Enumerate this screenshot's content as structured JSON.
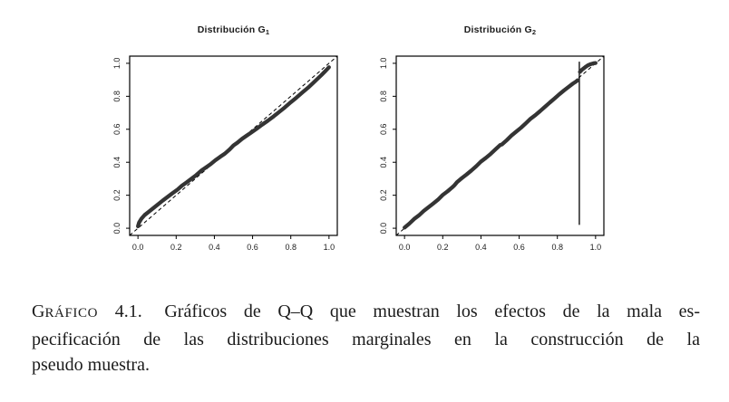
{
  "colors": {
    "background": "#ffffff",
    "curve": "#343434",
    "axis": "#000000",
    "reference": "#000000",
    "text": "#1b1b1b"
  },
  "caption": {
    "label_initial": "G",
    "label_rest": "RÁFICO",
    "number": "4.1.",
    "lines": [
      "Gráficos de Q–Q que muestran los efectos de la mala es-",
      "pecificación de las distribuciones marginales en la construcción de la",
      "pseudo muestra."
    ]
  },
  "chart_data": [
    {
      "type": "line",
      "title": "Distribución G",
      "title_subscript": "1",
      "xlabel": "",
      "ylabel": "",
      "xlim": [
        0,
        1
      ],
      "ylim": [
        0,
        1
      ],
      "grid": false,
      "xticks": [
        0,
        0.2,
        0.4,
        0.6,
        0.8,
        1.0
      ],
      "yticks": [
        0,
        0.2,
        0.4,
        0.6,
        0.8,
        1.0
      ],
      "xtick_labels": [
        "0.0",
        "0.2",
        "0.4",
        "0.6",
        "0.8",
        "1.0"
      ],
      "ytick_labels": [
        "0.0",
        "0.2",
        "0.4",
        "0.6",
        "0.8",
        "1.0"
      ],
      "reference_line": {
        "type": "diagonal",
        "style": "dashed",
        "from": [
          0,
          0
        ],
        "to": [
          1,
          1
        ]
      },
      "series": [
        {
          "name": "qq-curve",
          "style": "thick-points",
          "points": [
            [
              0.0,
              0.012
            ],
            [
              0.006,
              0.035
            ],
            [
              0.018,
              0.058
            ],
            [
              0.035,
              0.08
            ],
            [
              0.055,
              0.098
            ],
            [
              0.08,
              0.122
            ],
            [
              0.105,
              0.145
            ],
            [
              0.13,
              0.168
            ],
            [
              0.155,
              0.19
            ],
            [
              0.18,
              0.212
            ],
            [
              0.205,
              0.232
            ],
            [
              0.23,
              0.258
            ],
            [
              0.255,
              0.278
            ],
            [
              0.28,
              0.3
            ],
            [
              0.305,
              0.322
            ],
            [
              0.33,
              0.348
            ],
            [
              0.355,
              0.368
            ],
            [
              0.38,
              0.388
            ],
            [
              0.405,
              0.412
            ],
            [
              0.43,
              0.433
            ],
            [
              0.455,
              0.452
            ],
            [
              0.48,
              0.478
            ],
            [
              0.5,
              0.502
            ],
            [
              0.52,
              0.518
            ],
            [
              0.545,
              0.542
            ],
            [
              0.57,
              0.562
            ],
            [
              0.595,
              0.582
            ],
            [
              0.62,
              0.602
            ],
            [
              0.65,
              0.628
            ],
            [
              0.68,
              0.652
            ],
            [
              0.71,
              0.678
            ],
            [
              0.74,
              0.706
            ],
            [
              0.77,
              0.734
            ],
            [
              0.8,
              0.764
            ],
            [
              0.83,
              0.792
            ],
            [
              0.86,
              0.822
            ],
            [
              0.89,
              0.852
            ],
            [
              0.915,
              0.878
            ],
            [
              0.94,
              0.906
            ],
            [
              0.96,
              0.928
            ],
            [
              0.98,
              0.952
            ],
            [
              1.0,
              0.976
            ]
          ]
        }
      ]
    },
    {
      "type": "line",
      "title": "Distribución G",
      "title_subscript": "2",
      "xlabel": "",
      "ylabel": "",
      "xlim": [
        0,
        1
      ],
      "ylim": [
        0,
        1
      ],
      "grid": false,
      "xticks": [
        0,
        0.2,
        0.4,
        0.6,
        0.8,
        1.0
      ],
      "yticks": [
        0,
        0.2,
        0.4,
        0.6,
        0.8,
        1.0
      ],
      "xtick_labels": [
        "0.0",
        "0.2",
        "0.4",
        "0.6",
        "0.8",
        "1.0"
      ],
      "ytick_labels": [
        "0.0",
        "0.2",
        "0.4",
        "0.6",
        "0.8",
        "1.0"
      ],
      "reference_line": {
        "type": "diagonal",
        "style": "dashed",
        "from": [
          0,
          0
        ],
        "to": [
          1,
          1
        ]
      },
      "vertical_line": {
        "x": 0.915,
        "y_from": 0.02,
        "y_to": 1.01
      },
      "series": [
        {
          "name": "qq-curve-segment-1",
          "style": "thick-points",
          "points": [
            [
              0.0,
              0.004
            ],
            [
              0.025,
              0.028
            ],
            [
              0.05,
              0.056
            ],
            [
              0.075,
              0.078
            ],
            [
              0.1,
              0.104
            ],
            [
              0.125,
              0.127
            ],
            [
              0.15,
              0.15
            ],
            [
              0.175,
              0.173
            ],
            [
              0.2,
              0.202
            ],
            [
              0.225,
              0.224
            ],
            [
              0.25,
              0.248
            ],
            [
              0.262,
              0.262
            ],
            [
              0.275,
              0.28
            ],
            [
              0.3,
              0.304
            ],
            [
              0.325,
              0.326
            ],
            [
              0.35,
              0.35
            ],
            [
              0.375,
              0.376
            ],
            [
              0.4,
              0.404
            ],
            [
              0.425,
              0.426
            ],
            [
              0.45,
              0.45
            ],
            [
              0.475,
              0.477
            ],
            [
              0.5,
              0.504
            ],
            [
              0.51,
              0.508
            ],
            [
              0.535,
              0.534
            ],
            [
              0.56,
              0.562
            ],
            [
              0.585,
              0.586
            ],
            [
              0.61,
              0.61
            ],
            [
              0.635,
              0.636
            ],
            [
              0.66,
              0.664
            ],
            [
              0.685,
              0.686
            ],
            [
              0.71,
              0.71
            ],
            [
              0.735,
              0.736
            ],
            [
              0.76,
              0.762
            ],
            [
              0.785,
              0.786
            ],
            [
              0.81,
              0.812
            ],
            [
              0.835,
              0.836
            ],
            [
              0.86,
              0.858
            ],
            [
              0.88,
              0.876
            ],
            [
              0.898,
              0.89
            ],
            [
              0.906,
              0.897
            ]
          ]
        },
        {
          "name": "qq-curve-segment-2",
          "style": "thick-points",
          "points": [
            [
              0.918,
              0.948
            ],
            [
              0.93,
              0.962
            ],
            [
              0.945,
              0.976
            ],
            [
              0.96,
              0.988
            ],
            [
              0.975,
              0.995
            ],
            [
              0.99,
              1.0
            ],
            [
              1.0,
              1.002
            ]
          ]
        }
      ]
    }
  ]
}
